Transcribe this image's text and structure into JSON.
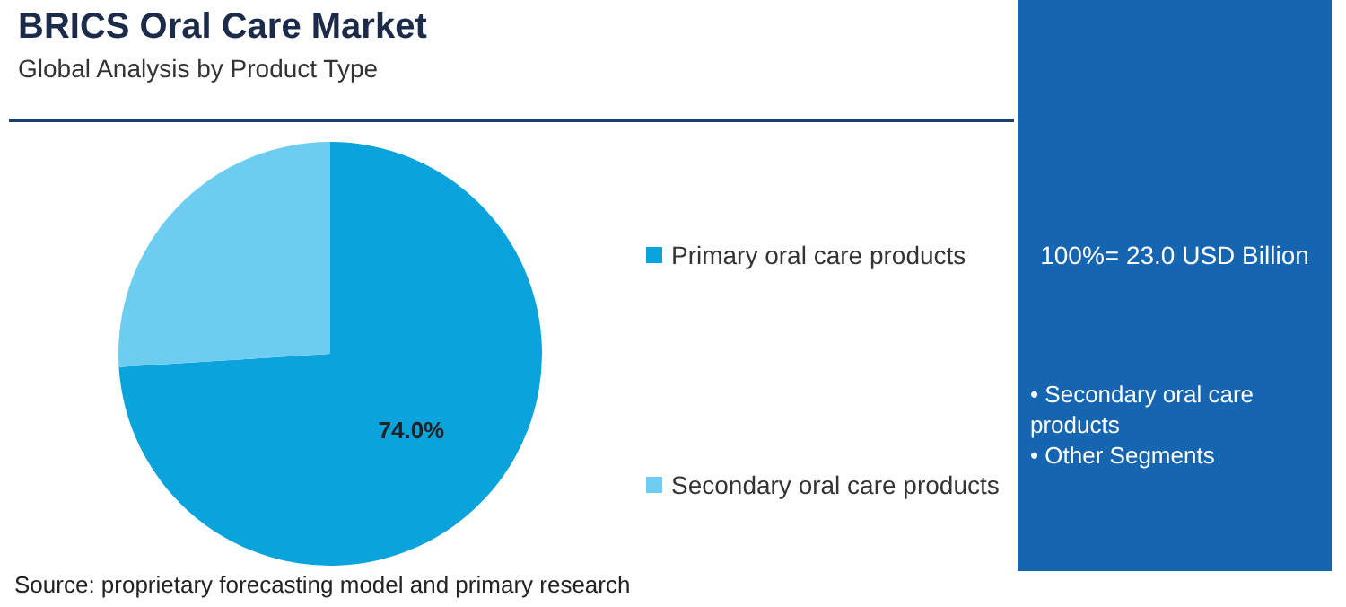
{
  "chart_data": {
    "type": "pie",
    "title": "BRICS Oral Care Market",
    "subtitle": "Global Analysis by Product Type",
    "categories": [
      "Primary oral care products",
      "Secondary oral care products"
    ],
    "values": [
      74.0,
      26.0
    ],
    "colors": [
      "#0aa3dc",
      "#6ccdf0"
    ],
    "value_labels": [
      "74.0%",
      null
    ],
    "legend": "right",
    "annotations": [
      "Source: proprietary forecasting model and primary research",
      "100%= 23.0 USD Billion",
      "• Secondary oral care products",
      "• Other Segments"
    ]
  }
}
